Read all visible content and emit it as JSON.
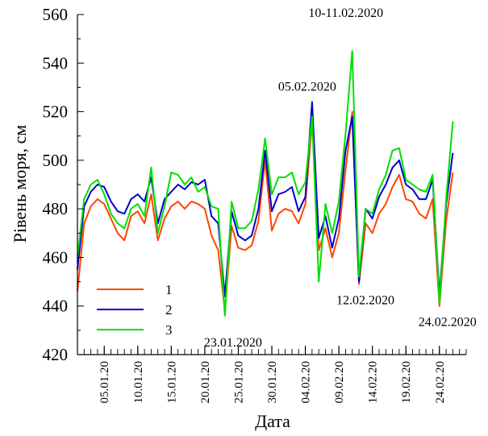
{
  "chart_data": {
    "type": "line",
    "xlabel": "Дата",
    "ylabel": "Рівень моря, см",
    "ylim": [
      420,
      560
    ],
    "yticks": [
      420,
      440,
      460,
      480,
      500,
      520,
      540,
      560
    ],
    "x_range": [
      "2020-01-01",
      "2020-02-28"
    ],
    "x_tick_labels": [
      "05.01.20",
      "10.01.20",
      "15.01.20",
      "20.01.20",
      "25.01.20",
      "30.01.20",
      "04.02.20",
      "09.02.20",
      "14.02.20",
      "19.02.20",
      "24.02.20"
    ],
    "x_tick_dates": [
      "2020-01-05",
      "2020-01-10",
      "2020-01-15",
      "2020-01-20",
      "2020-01-25",
      "2020-01-30",
      "2020-02-04",
      "2020-02-09",
      "2020-02-14",
      "2020-02-19",
      "2020-02-24"
    ],
    "grid": false,
    "legend_position": "bottom-left",
    "series": [
      {
        "name": "1",
        "color": "#ff4500",
        "points": [
          [
            "2020-01-01",
            446
          ],
          [
            "2020-01-02",
            474
          ],
          [
            "2020-01-03",
            481
          ],
          [
            "2020-01-04",
            484
          ],
          [
            "2020-01-05",
            482
          ],
          [
            "2020-01-06",
            476
          ],
          [
            "2020-01-07",
            470
          ],
          [
            "2020-01-08",
            467
          ],
          [
            "2020-01-09",
            477
          ],
          [
            "2020-01-10",
            479
          ],
          [
            "2020-01-11",
            474
          ],
          [
            "2020-01-12",
            486
          ],
          [
            "2020-01-13",
            467
          ],
          [
            "2020-01-14",
            476
          ],
          [
            "2020-01-15",
            481
          ],
          [
            "2020-01-16",
            483
          ],
          [
            "2020-01-17",
            480
          ],
          [
            "2020-01-18",
            483
          ],
          [
            "2020-01-19",
            482
          ],
          [
            "2020-01-20",
            480
          ],
          [
            "2020-01-21",
            469
          ],
          [
            "2020-01-22",
            463
          ],
          [
            "2020-01-23",
            438
          ],
          [
            "2020-01-24",
            473
          ],
          [
            "2020-01-25",
            464
          ],
          [
            "2020-01-26",
            463
          ],
          [
            "2020-01-27",
            465
          ],
          [
            "2020-01-28",
            475
          ],
          [
            "2020-01-29",
            500
          ],
          [
            "2020-01-30",
            471
          ],
          [
            "2020-01-31",
            478
          ],
          [
            "2020-02-01",
            480
          ],
          [
            "2020-02-02",
            479
          ],
          [
            "2020-02-03",
            474
          ],
          [
            "2020-02-04",
            482
          ],
          [
            "2020-02-05",
            516
          ],
          [
            "2020-02-06",
            463
          ],
          [
            "2020-02-07",
            472
          ],
          [
            "2020-02-08",
            460
          ],
          [
            "2020-02-09",
            470
          ],
          [
            "2020-02-10",
            496
          ],
          [
            "2020-02-11",
            520
          ],
          [
            "2020-02-12",
            449
          ],
          [
            "2020-02-13",
            474
          ],
          [
            "2020-02-14",
            470
          ],
          [
            "2020-02-15",
            478
          ],
          [
            "2020-02-16",
            482
          ],
          [
            "2020-02-17",
            489
          ],
          [
            "2020-02-18",
            494
          ],
          [
            "2020-02-19",
            484
          ],
          [
            "2020-02-20",
            483
          ],
          [
            "2020-02-21",
            478
          ],
          [
            "2020-02-22",
            476
          ],
          [
            "2020-02-23",
            484
          ],
          [
            "2020-02-24",
            440
          ],
          [
            "2020-02-25",
            475
          ],
          [
            "2020-02-26",
            495
          ]
        ]
      },
      {
        "name": "2",
        "color": "#0000cd",
        "points": [
          [
            "2020-01-01",
            455
          ],
          [
            "2020-01-02",
            481
          ],
          [
            "2020-01-03",
            487
          ],
          [
            "2020-01-04",
            490
          ],
          [
            "2020-01-05",
            489
          ],
          [
            "2020-01-06",
            483
          ],
          [
            "2020-01-07",
            479
          ],
          [
            "2020-01-08",
            478
          ],
          [
            "2020-01-09",
            484
          ],
          [
            "2020-01-10",
            486
          ],
          [
            "2020-01-11",
            483
          ],
          [
            "2020-01-12",
            493
          ],
          [
            "2020-01-13",
            474
          ],
          [
            "2020-01-14",
            484
          ],
          [
            "2020-01-15",
            487
          ],
          [
            "2020-01-16",
            490
          ],
          [
            "2020-01-17",
            488
          ],
          [
            "2020-01-18",
            491
          ],
          [
            "2020-01-19",
            490
          ],
          [
            "2020-01-20",
            492
          ],
          [
            "2020-01-21",
            477
          ],
          [
            "2020-01-22",
            474
          ],
          [
            "2020-01-23",
            444
          ],
          [
            "2020-01-24",
            479
          ],
          [
            "2020-01-25",
            469
          ],
          [
            "2020-01-26",
            467
          ],
          [
            "2020-01-27",
            469
          ],
          [
            "2020-01-28",
            480
          ],
          [
            "2020-01-29",
            504
          ],
          [
            "2020-01-30",
            479
          ],
          [
            "2020-01-31",
            486
          ],
          [
            "2020-02-01",
            487
          ],
          [
            "2020-02-02",
            489
          ],
          [
            "2020-02-03",
            479
          ],
          [
            "2020-02-04",
            485
          ],
          [
            "2020-02-05",
            524
          ],
          [
            "2020-02-06",
            468
          ],
          [
            "2020-02-07",
            477
          ],
          [
            "2020-02-08",
            464
          ],
          [
            "2020-02-09",
            476
          ],
          [
            "2020-02-10",
            504
          ],
          [
            "2020-02-11",
            518
          ],
          [
            "2020-02-12",
            450
          ],
          [
            "2020-02-13",
            480
          ],
          [
            "2020-02-14",
            476
          ],
          [
            "2020-02-15",
            485
          ],
          [
            "2020-02-16",
            490
          ],
          [
            "2020-02-17",
            497
          ],
          [
            "2020-02-18",
            500
          ],
          [
            "2020-02-19",
            490
          ],
          [
            "2020-02-20",
            488
          ],
          [
            "2020-02-21",
            484
          ],
          [
            "2020-02-22",
            484
          ],
          [
            "2020-02-23",
            492
          ],
          [
            "2020-02-24",
            444
          ],
          [
            "2020-02-25",
            482
          ],
          [
            "2020-02-26",
            503
          ]
        ]
      },
      {
        "name": "3",
        "color": "#00e000",
        "points": [
          [
            "2020-01-01",
            460
          ],
          [
            "2020-01-02",
            484
          ],
          [
            "2020-01-03",
            490
          ],
          [
            "2020-01-04",
            492
          ],
          [
            "2020-01-05",
            486
          ],
          [
            "2020-01-06",
            478
          ],
          [
            "2020-01-07",
            474
          ],
          [
            "2020-01-08",
            472
          ],
          [
            "2020-01-09",
            480
          ],
          [
            "2020-01-10",
            482
          ],
          [
            "2020-01-11",
            477
          ],
          [
            "2020-01-12",
            497
          ],
          [
            "2020-01-13",
            470
          ],
          [
            "2020-01-14",
            481
          ],
          [
            "2020-01-15",
            495
          ],
          [
            "2020-01-16",
            494
          ],
          [
            "2020-01-17",
            490
          ],
          [
            "2020-01-18",
            493
          ],
          [
            "2020-01-19",
            487
          ],
          [
            "2020-01-20",
            489
          ],
          [
            "2020-01-21",
            481
          ],
          [
            "2020-01-22",
            480
          ],
          [
            "2020-01-23",
            436
          ],
          [
            "2020-01-24",
            483
          ],
          [
            "2020-01-25",
            472
          ],
          [
            "2020-01-26",
            472
          ],
          [
            "2020-01-27",
            475
          ],
          [
            "2020-01-28",
            488
          ],
          [
            "2020-01-29",
            509
          ],
          [
            "2020-01-30",
            486
          ],
          [
            "2020-01-31",
            493
          ],
          [
            "2020-02-01",
            493
          ],
          [
            "2020-02-02",
            495
          ],
          [
            "2020-02-03",
            486
          ],
          [
            "2020-02-04",
            491
          ],
          [
            "2020-02-05",
            518
          ],
          [
            "2020-02-06",
            450
          ],
          [
            "2020-02-07",
            482
          ],
          [
            "2020-02-08",
            470
          ],
          [
            "2020-02-09",
            483
          ],
          [
            "2020-02-10",
            511
          ],
          [
            "2020-02-11",
            545
          ],
          [
            "2020-02-12",
            452
          ],
          [
            "2020-02-13",
            480
          ],
          [
            "2020-02-14",
            478
          ],
          [
            "2020-02-15",
            488
          ],
          [
            "2020-02-16",
            494
          ],
          [
            "2020-02-17",
            504
          ],
          [
            "2020-02-18",
            505
          ],
          [
            "2020-02-19",
            492
          ],
          [
            "2020-02-20",
            490
          ],
          [
            "2020-02-21",
            488
          ],
          [
            "2020-02-22",
            487
          ],
          [
            "2020-02-23",
            494
          ],
          [
            "2020-02-24",
            441
          ],
          [
            "2020-02-25",
            484
          ],
          [
            "2020-02-26",
            516
          ]
        ]
      }
    ],
    "annotations": [
      {
        "text": "23.01.2020",
        "date": "2020-01-23",
        "value": 436
      },
      {
        "text": "05.02.2020",
        "date": "2020-02-05",
        "value": 524
      },
      {
        "text": "10-11.02.2020",
        "date": "2020-02-11",
        "value": 545
      },
      {
        "text": "12.02.2020",
        "date": "2020-02-12",
        "value": 449
      },
      {
        "text": "24.02.2020",
        "date": "2020-02-24",
        "value": 440
      }
    ]
  }
}
